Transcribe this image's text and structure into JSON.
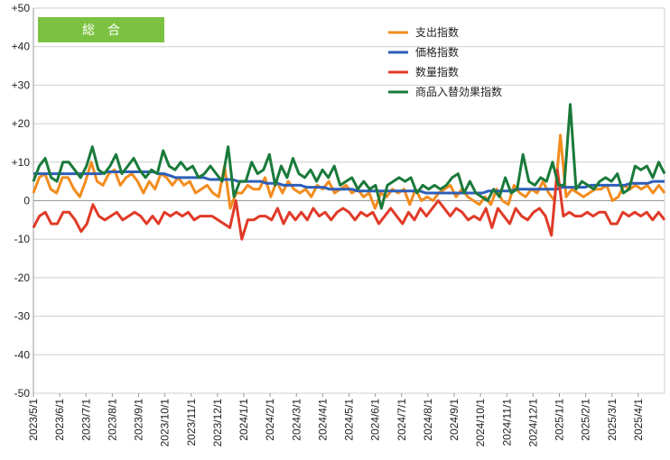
{
  "chart_data": {
    "type": "line",
    "title": "総　合",
    "title_bg_color": "#7cc242",
    "ylim": [
      -50,
      50
    ],
    "yticks": [
      "-50",
      "-40",
      "-30",
      "-20",
      "-10",
      "0",
      "+10",
      "+20",
      "+30",
      "+40",
      "+50"
    ],
    "grid": true,
    "legend_position": "top-right",
    "xtick_labels": [
      "2023/5/1",
      "2023/6/1",
      "2023/7/1",
      "2023/8/1",
      "2023/9/1",
      "2023/10/1",
      "2023/11/1",
      "2023/12/1",
      "2024/1/1",
      "2024/2/1",
      "2024/3/1",
      "2024/4/1",
      "2024/5/1",
      "2024/6/1",
      "2024/7/1",
      "2024/8/1",
      "2024/9/1",
      "2024/10/1",
      "2024/11/1",
      "2024/12/1",
      "2025/1/1",
      "2025/2/1",
      "2025/3/1",
      "2025/4/1"
    ],
    "series": [
      {
        "name": "支出指数",
        "color": "#f28c1e",
        "values": [
          2,
          6,
          7,
          3,
          2,
          6,
          6,
          3,
          1,
          5,
          10,
          5,
          4,
          7,
          8,
          4,
          6,
          7,
          5,
          2,
          5,
          3,
          7,
          6,
          4,
          6,
          4,
          5,
          2,
          3,
          4,
          2,
          1,
          9,
          -2,
          2,
          2,
          4,
          3,
          3,
          6,
          1,
          5,
          2,
          5,
          3,
          2,
          3,
          1,
          4,
          3,
          5,
          2,
          3,
          4,
          2,
          3,
          1,
          2,
          -2,
          2,
          1,
          3,
          2,
          3,
          -1,
          3,
          0,
          1,
          0,
          2,
          3,
          4,
          1,
          3,
          1,
          0,
          -1,
          1,
          -1,
          3,
          0,
          -1,
          4,
          2,
          1,
          3,
          2,
          5,
          2,
          0,
          17,
          1,
          3,
          2,
          1,
          2,
          3,
          3,
          4,
          0,
          1,
          4,
          3,
          4,
          3,
          4,
          2,
          4,
          2
        ]
      },
      {
        "name": "価格指数",
        "color": "#2e5fb8",
        "values": [
          7,
          7,
          7,
          7,
          7,
          7,
          7,
          7,
          7,
          7,
          7,
          7,
          7,
          7.5,
          7.5,
          7.5,
          7.5,
          7.5,
          7.5,
          7.5,
          7.5,
          7.5,
          7,
          7,
          6.5,
          6,
          6,
          6,
          6,
          6,
          6,
          5.5,
          5.5,
          5.5,
          5.5,
          5.5,
          5,
          5,
          5,
          5,
          5,
          4.5,
          4.5,
          4.5,
          4,
          4,
          4,
          4,
          3.5,
          3.5,
          3.5,
          3.5,
          3,
          3,
          3,
          3,
          3,
          2.5,
          2.5,
          2.5,
          2.5,
          2.5,
          2.5,
          2.5,
          2.5,
          2.5,
          2.5,
          2.5,
          2.5,
          2,
          2,
          2,
          2,
          2,
          2,
          2,
          2,
          2,
          2,
          2,
          2.5,
          2.5,
          2.5,
          2.5,
          2.5,
          3,
          3,
          3,
          3,
          3,
          3,
          3,
          3,
          3.5,
          3.5,
          3.5,
          3.5,
          3.5,
          4,
          4,
          4,
          4,
          4,
          4,
          4,
          4.5,
          4.5,
          4.5,
          4.5,
          5,
          5,
          5
        ]
      },
      {
        "name": "数量指数",
        "color": "#e03a28",
        "values": [
          -7,
          -4,
          -3,
          -6,
          -6,
          -3,
          -3,
          -5,
          -8,
          -6,
          -1,
          -4,
          -5,
          -4,
          -3,
          -5,
          -4,
          -3,
          -4,
          -6,
          -4,
          -6,
          -3,
          -4,
          -3,
          -4,
          -3,
          -5,
          -4,
          -4,
          -4,
          -5,
          -6,
          -7,
          0,
          -10,
          -5,
          -5,
          -4,
          -4,
          -5,
          -2,
          -6,
          -3,
          -5,
          -3,
          -5,
          -2,
          -4,
          -3,
          -5,
          -3,
          -2,
          -3,
          -5,
          -3,
          -4,
          -3,
          -6,
          -4,
          -2,
          -4,
          -6,
          -3,
          -5,
          -2,
          -4,
          -2,
          0,
          -2,
          -4,
          -2,
          -3,
          -5,
          -4,
          -5,
          -2,
          -7,
          -2,
          -4,
          -6,
          -2,
          -4,
          -5,
          -3,
          -2,
          -4,
          -9,
          8,
          -4,
          -3,
          -4,
          -4,
          -3,
          -4,
          -3,
          -3,
          -6,
          -6,
          -3,
          -4,
          -3,
          -4,
          -3,
          -5,
          -3,
          -5
        ]
      },
      {
        "name": "商品入替効果指数",
        "color": "#1a7a3a",
        "values": [
          5,
          9,
          11,
          6,
          5,
          10,
          10,
          8,
          6,
          9,
          14,
          8,
          7,
          9,
          12,
          7,
          9,
          11,
          8,
          6,
          8,
          7,
          13,
          9,
          8,
          10,
          8,
          9,
          6,
          7,
          9,
          7,
          5,
          14,
          1,
          5,
          5,
          10,
          7,
          8,
          12,
          4,
          9,
          6,
          11,
          7,
          6,
          8,
          5,
          8,
          6,
          9,
          4,
          5,
          6,
          3,
          5,
          3,
          4,
          -2,
          4,
          5,
          6,
          5,
          6,
          2,
          4,
          3,
          4,
          3,
          4,
          6,
          7,
          2,
          5,
          2,
          1,
          0,
          3,
          1,
          6,
          2,
          3,
          12,
          5,
          4,
          6,
          5,
          10,
          4,
          4,
          25,
          3,
          5,
          4,
          3,
          5,
          6,
          5,
          7,
          2,
          3,
          9,
          8,
          9,
          6,
          10,
          7
        ]
      }
    ]
  }
}
